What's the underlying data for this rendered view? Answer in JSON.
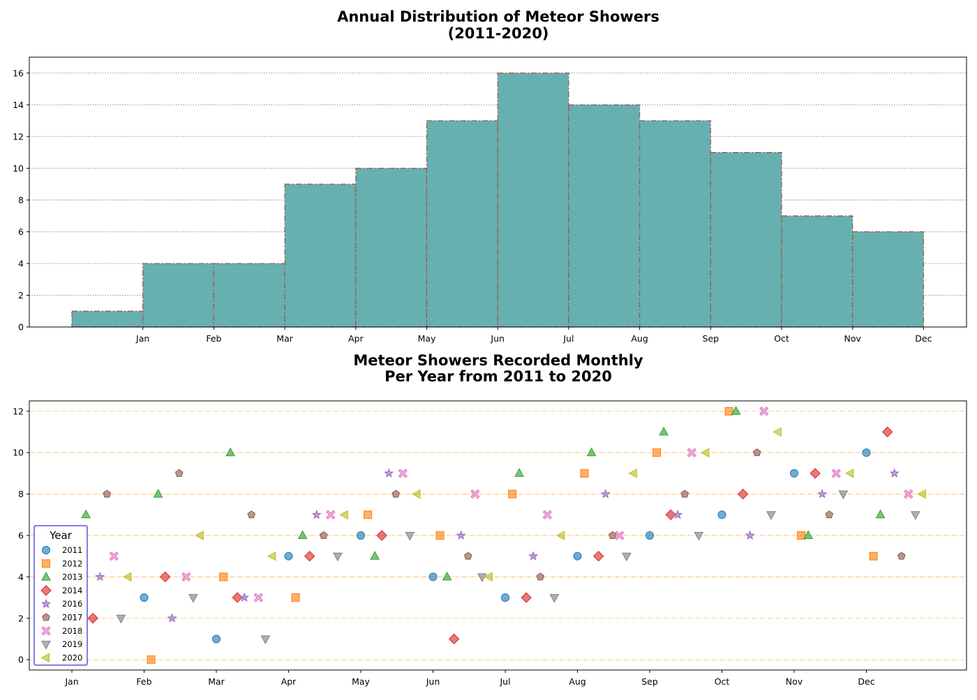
{
  "chart_data": [
    {
      "type": "bar",
      "title_lines": [
        "Annual Distribution of Meteor Showers",
        "(2011-2020)"
      ],
      "x_tick_labels": [
        "Jan",
        "Feb",
        "Mar",
        "Apr",
        "May",
        "Jun",
        "Jul",
        "Aug",
        "Sep",
        "Oct",
        "Nov",
        "Dec"
      ],
      "values": [
        1,
        4,
        4,
        9,
        10,
        13,
        16,
        14,
        13,
        11,
        7,
        6
      ],
      "ylim": [
        0,
        17
      ],
      "y_ticks": [
        0,
        2,
        4,
        6,
        8,
        10,
        12,
        14,
        16
      ],
      "grid": "y",
      "bar_color": "#66b0b0",
      "edge_color": "#a0524a",
      "grid_color": "#9467bd"
    },
    {
      "type": "scatter",
      "title_lines": [
        "Meteor Showers Recorded Monthly",
        "Per Year from 2011 to 2020"
      ],
      "x_tick_labels": [
        "Jan",
        "Feb",
        "Mar",
        "Apr",
        "May",
        "Jun",
        "Jul",
        "Aug",
        "Sep",
        "Oct",
        "Nov",
        "Dec"
      ],
      "ylim": [
        -0.5,
        12.5
      ],
      "y_ticks": [
        0,
        2,
        4,
        6,
        8,
        10,
        12
      ],
      "grid": "y",
      "grid_color": "#ffbf66",
      "legend": {
        "title": "Year",
        "position": "lower-left",
        "border_color": "#0000cc"
      },
      "series": [
        {
          "name": "2011",
          "marker": "circle",
          "color": "#1f77b4",
          "values": [
            2,
            3,
            1,
            5,
            6,
            4,
            3,
            5,
            6,
            7,
            9,
            10
          ]
        },
        {
          "name": "2012",
          "marker": "square",
          "color": "#ff7f0e",
          "values": [
            1,
            0,
            4,
            3,
            7,
            6,
            8,
            9,
            10,
            12,
            6,
            5
          ]
        },
        {
          "name": "2013",
          "marker": "triangle",
          "color": "#2ca02c",
          "values": [
            7,
            8,
            10,
            6,
            5,
            4,
            9,
            10,
            11,
            12,
            6,
            7
          ]
        },
        {
          "name": "2014",
          "marker": "diamond",
          "color": "#d62728",
          "values": [
            2,
            4,
            3,
            5,
            6,
            1,
            3,
            5,
            7,
            8,
            9,
            11
          ]
        },
        {
          "name": "2016",
          "marker": "star",
          "color": "#9467bd",
          "values": [
            4,
            2,
            3,
            7,
            9,
            6,
            5,
            8,
            7,
            6,
            8,
            9
          ]
        },
        {
          "name": "2017",
          "marker": "pentagon",
          "color": "#8c564b",
          "values": [
            8,
            9,
            7,
            6,
            8,
            5,
            4,
            6,
            8,
            10,
            7,
            5
          ]
        },
        {
          "name": "2018",
          "marker": "x",
          "color": "#e377c2",
          "values": [
            5,
            4,
            3,
            7,
            9,
            8,
            7,
            6,
            10,
            12,
            9,
            8
          ]
        },
        {
          "name": "2019",
          "marker": "tri_down",
          "color": "#7f7f7f",
          "values": [
            2,
            3,
            1,
            5,
            6,
            4,
            3,
            5,
            6,
            7,
            8,
            7
          ]
        },
        {
          "name": "2020",
          "marker": "tri_left",
          "color": "#bcbd22",
          "values": [
            4,
            6,
            5,
            7,
            8,
            4,
            6,
            9,
            10,
            11,
            9,
            8
          ]
        }
      ]
    }
  ]
}
